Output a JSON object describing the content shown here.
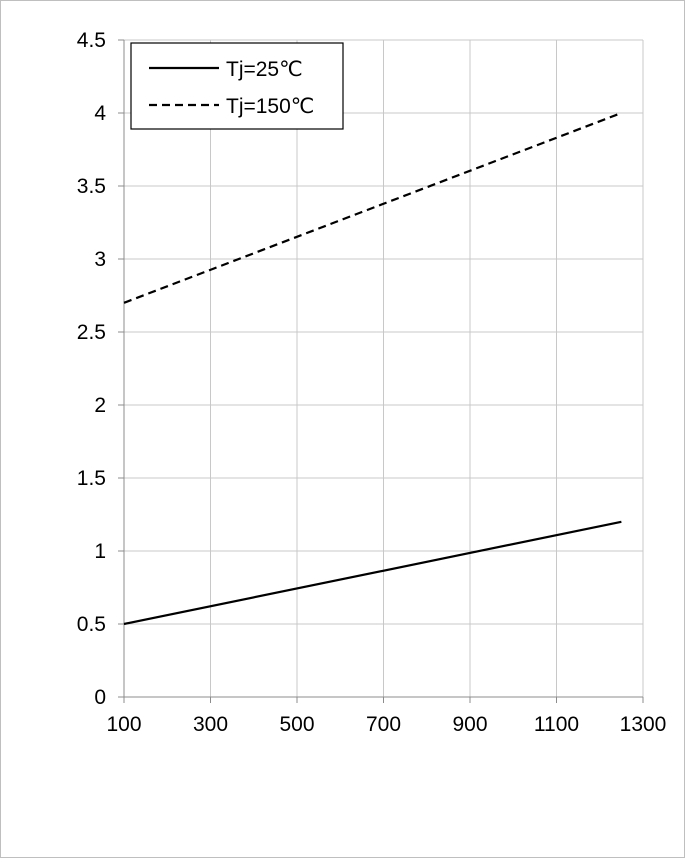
{
  "chart_data": {
    "type": "line",
    "title": "",
    "xlabel": "",
    "ylabel": "",
    "x_ticks": [
      100,
      300,
      500,
      700,
      900,
      1100,
      1300
    ],
    "y_ticks": [
      0,
      0.5,
      1,
      1.5,
      2,
      2.5,
      3,
      3.5,
      4,
      4.5
    ],
    "x_tick_labels": [
      "100",
      "300",
      "500",
      "700",
      "900",
      "1100",
      "1300"
    ],
    "y_tick_labels": [
      "0",
      "0.5",
      "1",
      "1.5",
      "2",
      "2.5",
      "3",
      "3.5",
      "4",
      "4.5"
    ],
    "xlim": [
      100,
      1300
    ],
    "ylim": [
      0,
      4.5
    ],
    "grid": true,
    "legend_position": "top-left",
    "series": [
      {
        "name": "Tj=25℃",
        "style": "solid",
        "color": "#000000",
        "x": [
          100,
          1250
        ],
        "y": [
          0.5,
          1.2
        ]
      },
      {
        "name": "Tj=150℃",
        "style": "dashed",
        "color": "#000000",
        "x": [
          100,
          1250
        ],
        "y": [
          2.7,
          4.0
        ]
      }
    ]
  }
}
